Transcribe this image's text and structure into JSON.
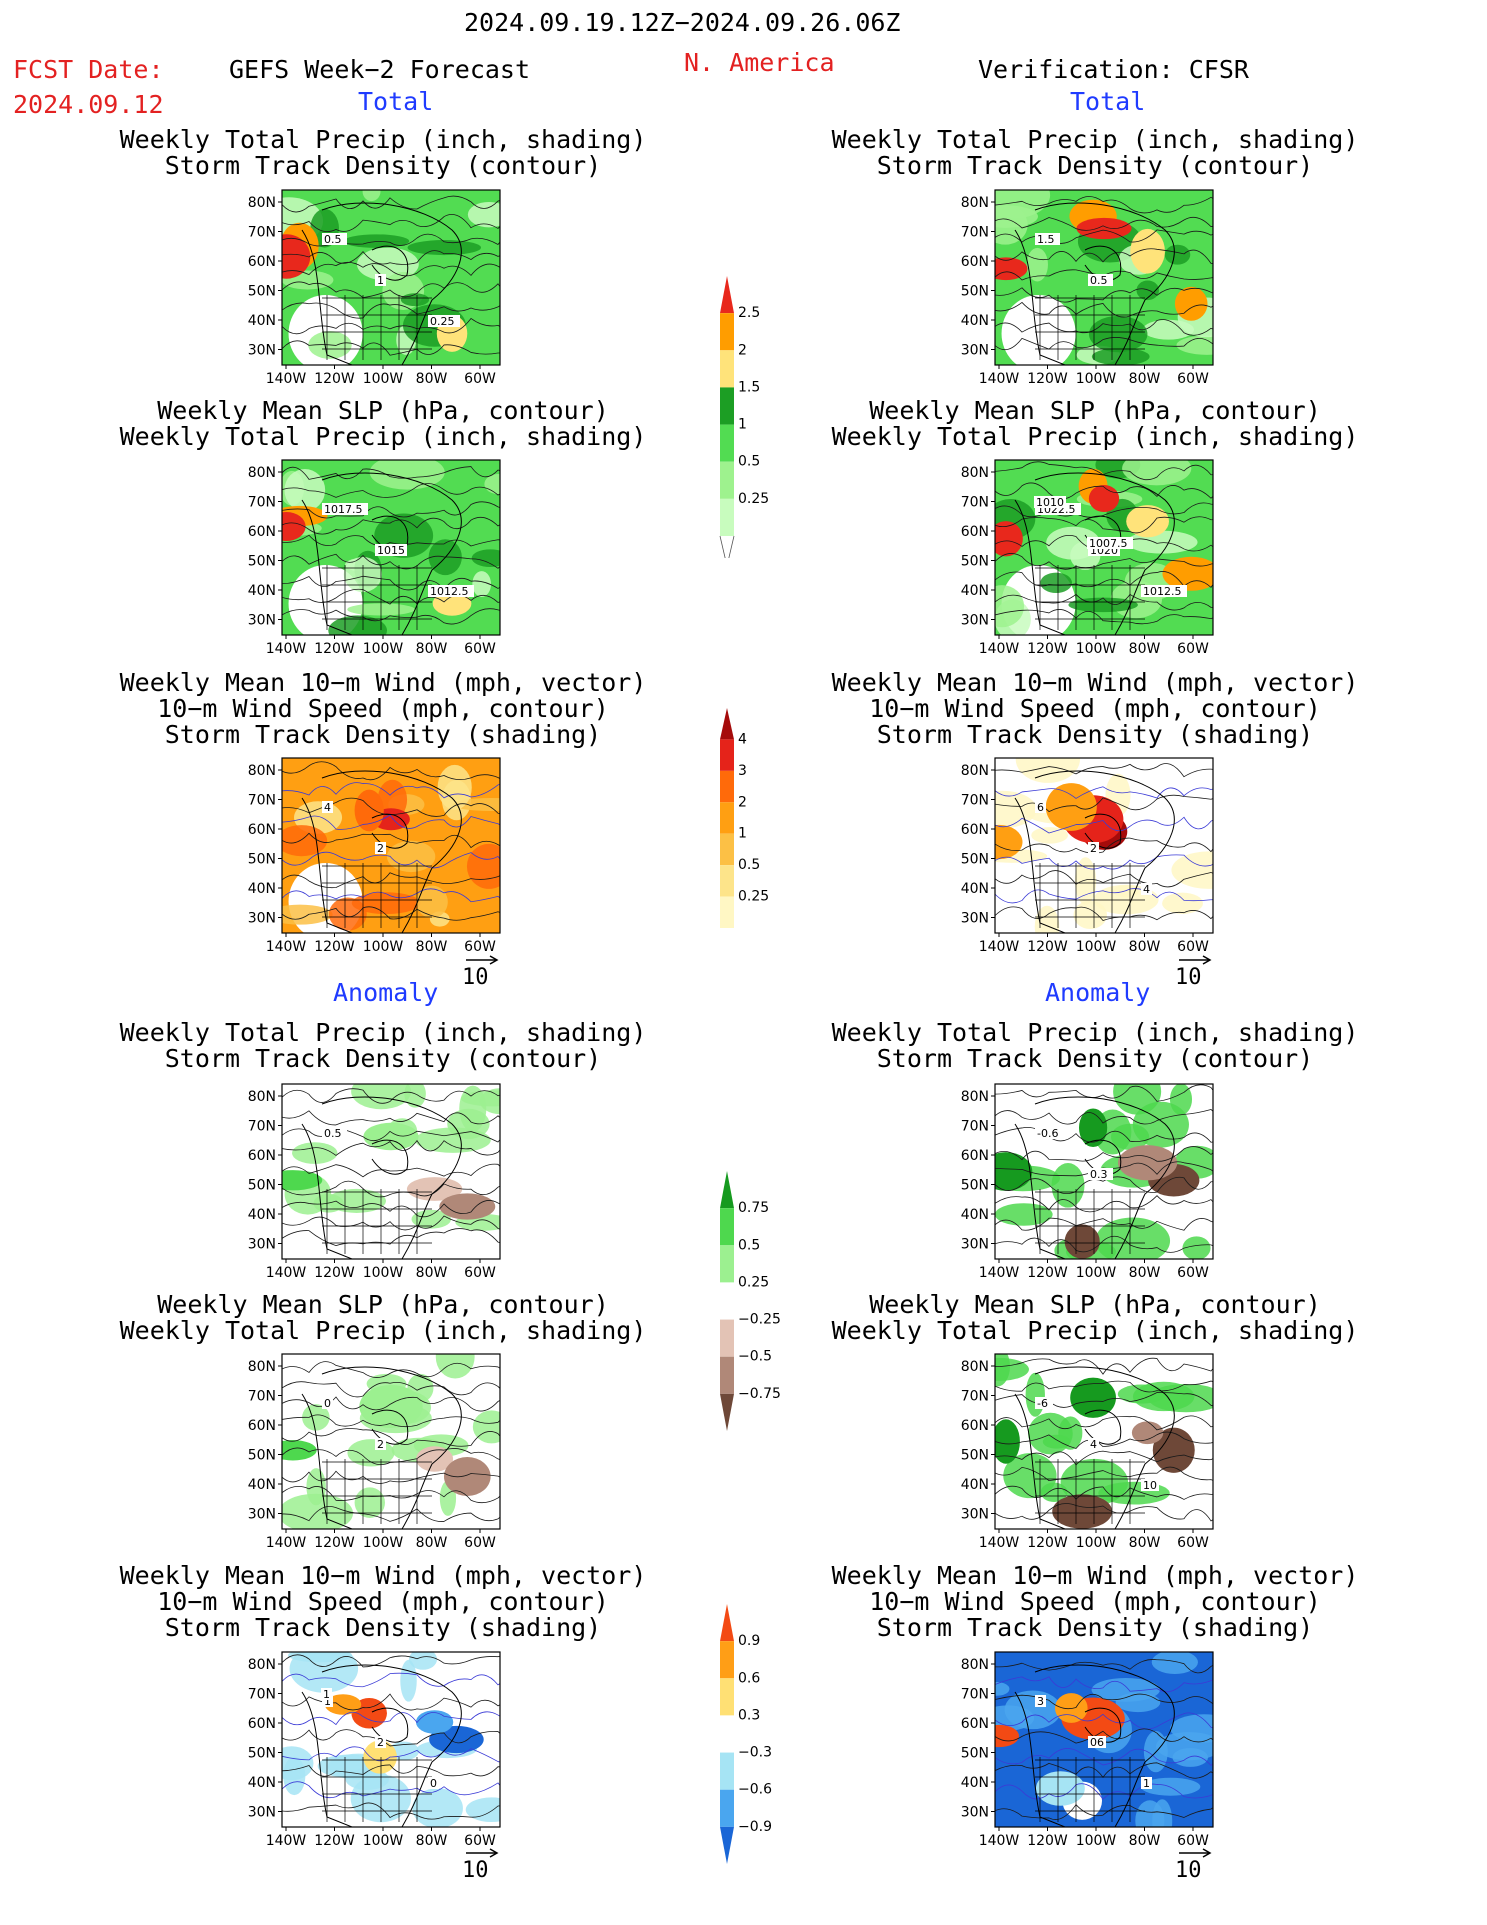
{
  "header": {
    "date_range": "2024.09.19.12Z−2024.09.26.06Z",
    "fcst_label": "FCST Date:",
    "fcst_date": "2024.09.12",
    "left_heading": "GEFS Week−2 Forecast",
    "region": "N. America",
    "right_heading": "Verification: CFSR"
  },
  "sections": {
    "total": "Total",
    "anomaly": "Anomaly"
  },
  "titles": {
    "precip_storm": [
      "Weekly Total Precip (inch, shading)",
      "Storm Track Density (contour)"
    ],
    "slp_precip": [
      "Weekly Mean SLP (hPa, contour)",
      "Weekly Total Precip (inch, shading)"
    ],
    "wind_storm": [
      "Weekly Mean 10−m Wind (mph, vector)",
      "10−m Wind Speed (mph, contour)",
      "Storm Track Density (shading)"
    ]
  },
  "axes": {
    "lat": [
      "80N",
      "70N",
      "60N",
      "50N",
      "40N",
      "30N"
    ],
    "lon": [
      "140W",
      "120W",
      "100W",
      "80W",
      "60W"
    ]
  },
  "vector_ref": "10",
  "contour_labels": {
    "gefs_precip": [
      "0.5",
      "1",
      "0.25"
    ],
    "gefs_slp": [
      "1017.5",
      "1015",
      "1012.5"
    ],
    "gefs_wind": [
      "4",
      "2"
    ],
    "cfsr_precip": [
      "1.5",
      "0.5"
    ],
    "cfsr_slp": [
      "1022.5",
      "1020",
      "1012.5",
      "1010",
      "1007.5"
    ],
    "cfsr_wind": [
      "6",
      "2",
      "4"
    ],
    "gefs_precip_anom": [
      "0.5"
    ],
    "gefs_slp_anom": [
      "0",
      "2"
    ],
    "gefs_wind_anom": [
      "1",
      "2",
      "0",
      "1"
    ],
    "cfsr_precip_anom": [
      "-0.6",
      "0.3"
    ],
    "cfsr_slp_anom": [
      "-6",
      "4",
      "10"
    ],
    "cfsr_wind_anom": [
      "3",
      "06",
      "1"
    ]
  },
  "colorbars": {
    "precip_total": {
      "labels": [
        "2.5",
        "2",
        "1.5",
        "1",
        "0.5",
        "0.25"
      ],
      "colors": [
        "#e8281c",
        "#ff9d00",
        "#ffe37a",
        "#1c9e24",
        "#52dc52",
        "#9ef28e",
        "#c8fcbe"
      ]
    },
    "storm_total": {
      "labels": [
        "4",
        "3",
        "2",
        "1",
        "0.5",
        "0.25"
      ],
      "colors": [
        "#a50b0b",
        "#e5231a",
        "#ff6a0a",
        "#ff9f12",
        "#fcc045",
        "#fde48a",
        "#fff7c4"
      ]
    },
    "precip_anom": {
      "labels": [
        "0.75",
        "0.5",
        "0.25",
        "−0.25",
        "−0.5",
        "−0.75"
      ],
      "colors": [
        "#169a1f",
        "#4ed84e",
        "#9cf090",
        "#ffffff",
        "#e3c3b5",
        "#b08878",
        "#6e4838"
      ]
    },
    "storm_anom": {
      "labels": [
        "0.9",
        "0.6",
        "0.3",
        "−0.3",
        "−0.6",
        "−0.9"
      ],
      "colors": [
        "#f34a14",
        "#ff9e16",
        "#ffe074",
        "#ffffff",
        "#a6e4f4",
        "#4aa6ef",
        "#1a66d6"
      ]
    }
  }
}
